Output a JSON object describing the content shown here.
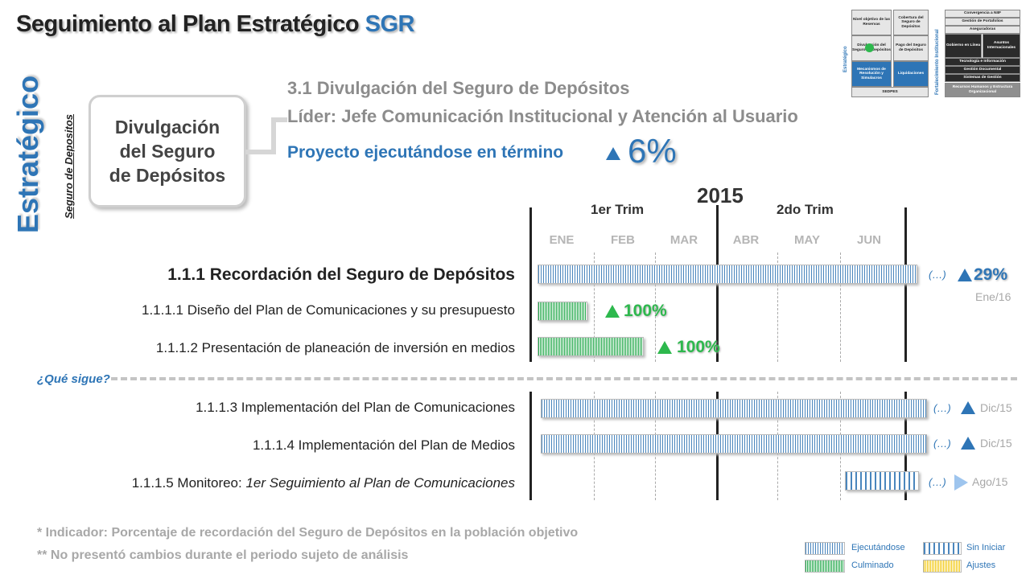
{
  "header": {
    "title_prefix": "Seguimiento al Plan Estratégico ",
    "title_accent": "SGR"
  },
  "mini_chart": {
    "cells": [
      "Nivel objetivo de las Reservas",
      "Cobertura del Seguro de Depósitos",
      "Divulgación del Seguro de Depósitos",
      "Pago del Seguro de Depósitos",
      "Mecanismos de Resolución y Simulacros",
      "Liquidaciones",
      "SEDPES",
      "Convergencia a NIIF",
      "Gestión de Portafolios",
      "Aseguradoras",
      "Gobierno en Línea",
      "Asuntos Internacionales",
      "Tecnología e Información",
      "Gestión Documental",
      "Sistemas de Gestión",
      "Recursos Humanos y Estructura Organizacional"
    ],
    "left_label": "Estratégico",
    "right_label": "Fortalecimiento Institucional"
  },
  "side": {
    "vertical_title": "Estratégico",
    "vertical_subtitle": "Seguro de Depositos",
    "box_lines": [
      "Divulgación",
      "del Seguro",
      "de Depósitos"
    ]
  },
  "project": {
    "line1": "3.1 Divulgación del Seguro de Depósitos",
    "line2": "Líder: Jefe Comunicación Institucional y Atención al Usuario",
    "status": "Proyecto ejecutándose en término",
    "percent": "6%"
  },
  "timeline": {
    "year": "2015",
    "quarters": [
      "1er Trim",
      "2do Trim"
    ],
    "months": [
      "ENE",
      "FEB",
      "MAR",
      "ABR",
      "MAY",
      "JUN"
    ]
  },
  "tasks": [
    {
      "label": "1.1.1  Recordación del Seguro de Depósitos",
      "ellipsis": "(…)",
      "percent": "29%",
      "date": "Ene/16"
    },
    {
      "label": "1.1.1.1 Diseño del Plan de Comunicaciones y su presupuesto",
      "percent": "100%"
    },
    {
      "label": "1.1.1.2 Presentación de planeación de inversión en medios",
      "percent": "100%"
    },
    {
      "label": "1.1.1.3 Implementación del Plan de Comunicaciones",
      "ellipsis": "(…)",
      "date": "Dic/15"
    },
    {
      "label": "1.1.1.4 Implementación del Plan de Medios",
      "ellipsis": "(…)",
      "date": "Dic/15"
    },
    {
      "label_prefix": "1.1.1.5 Monitoreo: ",
      "label_italic": "1er Seguimiento al Plan de Comunicaciones",
      "ellipsis": "(…)",
      "date": "Ago/15"
    }
  ],
  "que_sigue": "¿Qué sigue?",
  "footnotes": [
    "* Indicador: Porcentaje de recordación del Seguro de Depósitos en la población objetivo",
    "** No presentó cambios durante el periodo sujeto de análisis"
  ],
  "legend": {
    "ejecutandose": "Ejecutándose",
    "culminado": "Culminado",
    "sin_iniciar": "Sin Iniciar",
    "ajustes": "Ajustes"
  },
  "colors": {
    "accent_blue": "#2e75b6",
    "green": "#2db84d",
    "gray_text": "#8c8c8c",
    "yellow": "#f2c811"
  }
}
